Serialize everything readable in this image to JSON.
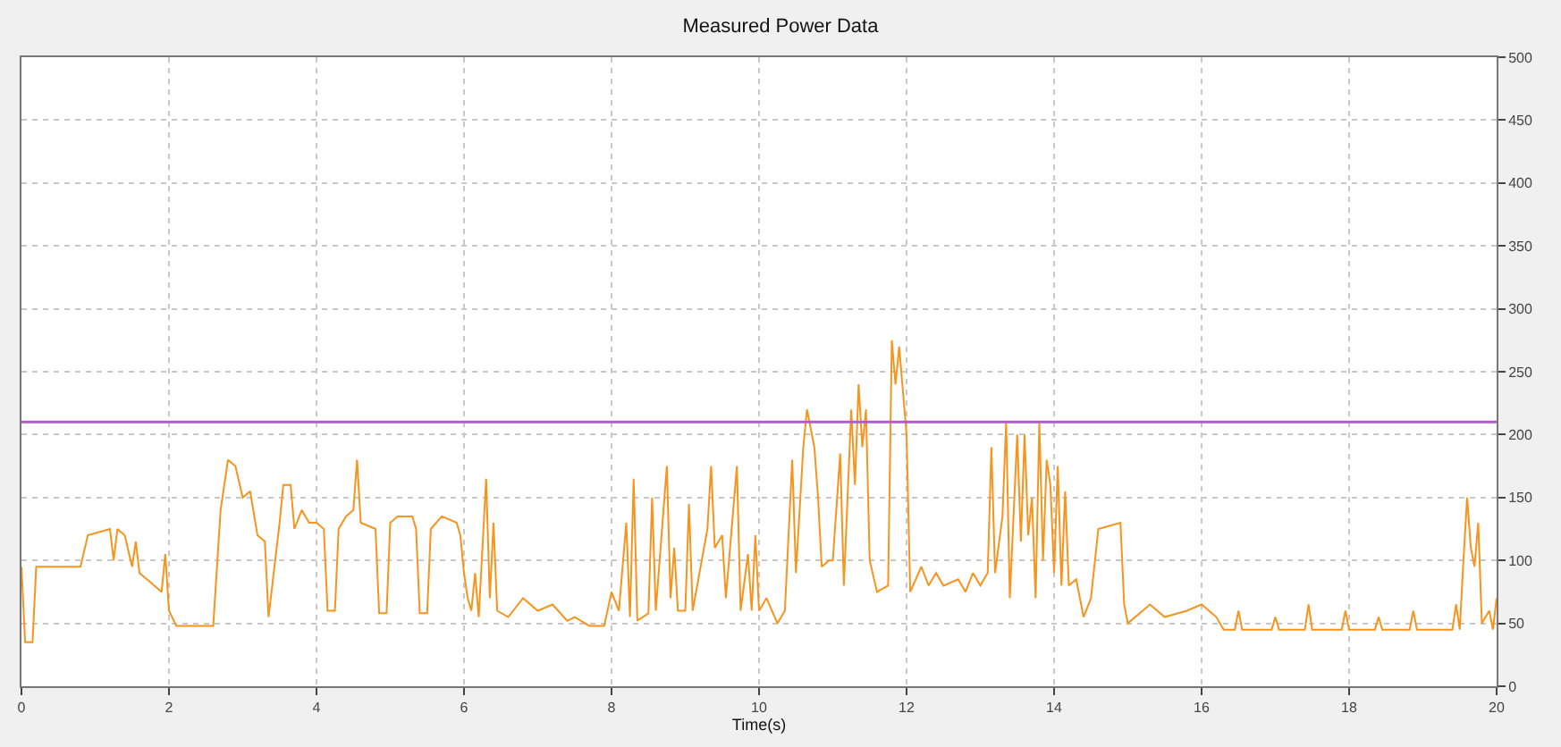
{
  "chart_data": {
    "type": "line",
    "title": "Measured Power Data",
    "xlabel": "Time(s)",
    "x": [
      0,
      0.05,
      0.15,
      0.2,
      0.8,
      0.9,
      1.2,
      1.25,
      1.3,
      1.4,
      1.5,
      1.55,
      1.6,
      1.8,
      1.9,
      1.95,
      2.0,
      2.1,
      2.6,
      2.7,
      2.8,
      2.9,
      3.0,
      3.1,
      3.2,
      3.3,
      3.35,
      3.45,
      3.5,
      3.55,
      3.65,
      3.7,
      3.8,
      3.9,
      4.0,
      4.1,
      4.15,
      4.25,
      4.3,
      4.4,
      4.5,
      4.55,
      4.6,
      4.8,
      4.85,
      4.95,
      5.0,
      5.1,
      5.3,
      5.35,
      5.4,
      5.5,
      5.55,
      5.7,
      5.9,
      5.95,
      6.0,
      6.05,
      6.1,
      6.15,
      6.2,
      6.3,
      6.35,
      6.4,
      6.45,
      6.6,
      6.8,
      7.0,
      7.2,
      7.4,
      7.5,
      7.7,
      7.9,
      8.0,
      8.1,
      8.2,
      8.25,
      8.3,
      8.35,
      8.5,
      8.55,
      8.6,
      8.75,
      8.8,
      8.85,
      8.9,
      9.0,
      9.05,
      9.1,
      9.3,
      9.35,
      9.4,
      9.5,
      9.55,
      9.7,
      9.75,
      9.85,
      9.9,
      9.95,
      10.0,
      10.1,
      10.25,
      10.35,
      10.45,
      10.5,
      10.6,
      10.65,
      10.75,
      10.8,
      10.85,
      10.95,
      11.0,
      11.1,
      11.15,
      11.25,
      11.3,
      11.35,
      11.4,
      11.45,
      11.5,
      11.6,
      11.75,
      11.8,
      11.85,
      11.9,
      12.0,
      12.05,
      12.2,
      12.3,
      12.4,
      12.5,
      12.7,
      12.8,
      12.9,
      13.0,
      13.1,
      13.15,
      13.2,
      13.3,
      13.35,
      13.4,
      13.5,
      13.55,
      13.6,
      13.65,
      13.7,
      13.75,
      13.8,
      13.85,
      13.9,
      13.95,
      14.0,
      14.05,
      14.1,
      14.15,
      14.2,
      14.3,
      14.4,
      14.5,
      14.6,
      14.9,
      14.95,
      15.0,
      15.3,
      15.5,
      15.8,
      16.0,
      16.2,
      16.3,
      16.45,
      16.5,
      16.55,
      16.95,
      17.0,
      17.05,
      17.4,
      17.45,
      17.5,
      17.9,
      17.95,
      18.0,
      18.35,
      18.4,
      18.45,
      18.82,
      18.87,
      18.92,
      19.4,
      19.45,
      19.5,
      19.55,
      19.6,
      19.65,
      19.7,
      19.75,
      19.8,
      19.9,
      19.95,
      20.0
    ],
    "series": [
      {
        "color": "#f7941d",
        "values": [
          95,
          35,
          35,
          95,
          95,
          120,
          125,
          100,
          125,
          120,
          95,
          115,
          90,
          80,
          75,
          105,
          60,
          48,
          48,
          140,
          180,
          175,
          150,
          155,
          120,
          115,
          55,
          105,
          130,
          160,
          160,
          125,
          140,
          130,
          130,
          125,
          60,
          60,
          125,
          135,
          140,
          180,
          130,
          125,
          58,
          58,
          130,
          135,
          135,
          125,
          58,
          58,
          125,
          135,
          130,
          120,
          90,
          70,
          60,
          90,
          55,
          165,
          70,
          130,
          60,
          55,
          70,
          60,
          65,
          52,
          55,
          48,
          48,
          75,
          60,
          130,
          55,
          165,
          52,
          58,
          150,
          60,
          175,
          70,
          110,
          60,
          60,
          145,
          60,
          125,
          175,
          110,
          120,
          70,
          175,
          60,
          105,
          60,
          120,
          60,
          70,
          50,
          60,
          180,
          90,
          190,
          220,
          190,
          150,
          95,
          100,
          100,
          185,
          80,
          220,
          160,
          240,
          190,
          220,
          100,
          75,
          80,
          275,
          240,
          270,
          200,
          75,
          95,
          80,
          90,
          80,
          85,
          75,
          90,
          80,
          90,
          190,
          90,
          135,
          210,
          70,
          200,
          115,
          200,
          120,
          150,
          70,
          210,
          100,
          180,
          160,
          90,
          175,
          80,
          155,
          80,
          85,
          55,
          70,
          125,
          130,
          65,
          50,
          65,
          55,
          60,
          65,
          55,
          45,
          45,
          60,
          45,
          45,
          55,
          45,
          45,
          65,
          45,
          45,
          60,
          45,
          45,
          55,
          45,
          45,
          60,
          45,
          45,
          65,
          45,
          100,
          150,
          110,
          95,
          130,
          50,
          60,
          45,
          70
        ]
      }
    ],
    "xlim": [
      0,
      20
    ],
    "xticks": [
      0,
      2,
      4,
      6,
      8,
      10,
      12,
      14,
      16,
      18,
      20
    ],
    "ylim": [
      0,
      500
    ],
    "yticks": [
      0,
      50,
      100,
      150,
      200,
      250,
      300,
      350,
      400,
      450,
      500
    ],
    "ref_lines": [
      {
        "axis": "y",
        "value": 210,
        "color": "#b05cc8"
      }
    ],
    "grid": true,
    "line_style": "solid",
    "marker": "none"
  }
}
